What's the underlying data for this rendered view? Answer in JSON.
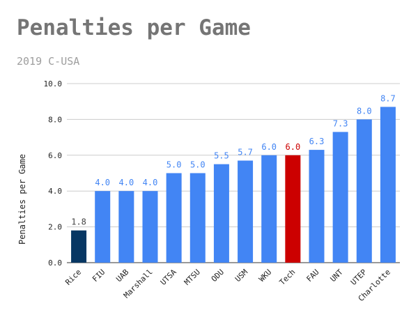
{
  "title": "Penalties per Game",
  "subtitle": "2019 C-USA",
  "colors": {
    "default_bar": "#4285f4",
    "highlight_bar": "#cc0000",
    "low_bar": "#073763",
    "default_label": "#4285f4",
    "highlight_label": "#cc0000",
    "low_label": "#444444",
    "title": "#757575",
    "subtitle": "#9e9e9e",
    "axis_text": "#222222",
    "gridline": "#cccccc"
  },
  "chart_data": {
    "type": "bar",
    "xlabel": "",
    "ylabel": "Penalties per Game",
    "ylim": [
      0,
      10
    ],
    "yticks": [
      "0.0",
      "2.0",
      "4.0",
      "6.0",
      "8.0",
      "10.0"
    ],
    "grid": true,
    "categories": [
      "Rice",
      "FIU",
      "UAB",
      "Marshall",
      "UTSA",
      "MTSU",
      "ODU",
      "USM",
      "WKU",
      "Tech",
      "FAU",
      "UNT",
      "UTEP",
      "Charlotte"
    ],
    "values": [
      1.8,
      4.0,
      4.0,
      4.0,
      5.0,
      5.0,
      5.5,
      5.7,
      6.0,
      6.0,
      6.3,
      7.3,
      8.0,
      8.7
    ],
    "value_labels": [
      "1.8",
      "4.0",
      "4.0",
      "4.0",
      "5.0",
      "5.0",
      "5.5",
      "5.7",
      "6.0",
      "6.0",
      "6.3",
      "7.3",
      "8.0",
      "8.7"
    ],
    "bar_colors": [
      "#073763",
      "#4285f4",
      "#4285f4",
      "#4285f4",
      "#4285f4",
      "#4285f4",
      "#4285f4",
      "#4285f4",
      "#4285f4",
      "#cc0000",
      "#4285f4",
      "#4285f4",
      "#4285f4",
      "#4285f4"
    ],
    "label_colors": [
      "#444444",
      "#4285f4",
      "#4285f4",
      "#4285f4",
      "#4285f4",
      "#4285f4",
      "#4285f4",
      "#4285f4",
      "#4285f4",
      "#cc0000",
      "#4285f4",
      "#4285f4",
      "#4285f4",
      "#4285f4"
    ]
  }
}
